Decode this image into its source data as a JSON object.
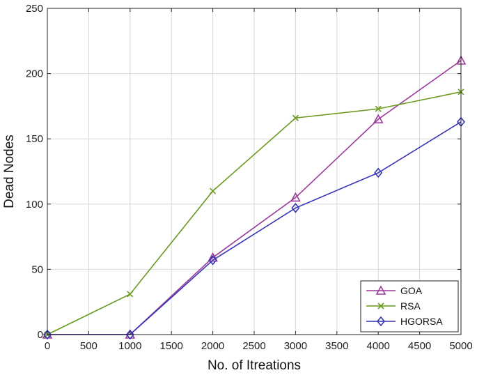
{
  "chart_data": {
    "type": "line",
    "title": "",
    "xlabel": "No. of Itreations",
    "ylabel": "Dead Nodes",
    "x": [
      0,
      1000,
      2000,
      3000,
      4000,
      5000
    ],
    "xlim": [
      0,
      5000
    ],
    "ylim": [
      0,
      250
    ],
    "xticks": [
      0,
      500,
      1000,
      1500,
      2000,
      2500,
      3000,
      3500,
      4000,
      4500,
      5000
    ],
    "yticks": [
      0,
      50,
      100,
      150,
      200,
      250
    ],
    "grid": true,
    "legend_position": "bottom-right",
    "series": [
      {
        "name": "GOA",
        "values": [
          0,
          0,
          59,
          105,
          165,
          210
        ],
        "color": "#9b3a9b",
        "marker": "triangle"
      },
      {
        "name": "RSA",
        "values": [
          0,
          31,
          110,
          166,
          173,
          186
        ],
        "color": "#6b9a1f",
        "marker": "x"
      },
      {
        "name": "HGORSA",
        "values": [
          0,
          0,
          57,
          97,
          124,
          163
        ],
        "color": "#3535b5",
        "marker": "diamond"
      }
    ]
  }
}
